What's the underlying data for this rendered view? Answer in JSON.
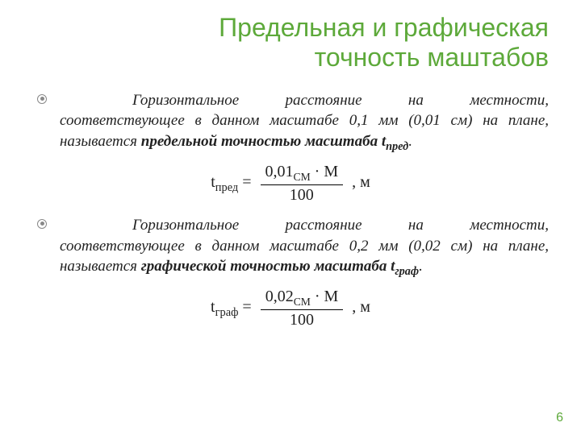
{
  "colors": {
    "title": "#5da93a",
    "body_text": "#222222",
    "page_number": "#5da93a",
    "bullet_ring": "#888888",
    "rule": "#000000",
    "background": "#ffffff"
  },
  "typography": {
    "title_fontsize_pt": 24,
    "body_fontsize_pt": 14,
    "formula_fontsize_pt": 15,
    "title_font": "sans-serif",
    "body_font": "Georgia / Times italic"
  },
  "title_line1": "Предельная и графическая",
  "title_line2": "точность маштабов",
  "para1": {
    "lead": "Горизонтальное расстояние на местности, соответствующее в данном масштабе 0,1 мм (0,01 см) на плане, называется ",
    "term": "предельной точностью масштаба t",
    "term_sub": "пред",
    "tail": "."
  },
  "formula1": {
    "lhs_t": "t",
    "lhs_sub": "пред",
    "eq": " = ",
    "num_val": "0,01",
    "num_unit_sub": "СМ",
    "num_dot": " · М",
    "den": "100",
    "trail": " , м"
  },
  "para2": {
    "lead": "Горизонтальное расстояние на местности, соответствующее в данном масштабе 0,2 мм (0,02 см) на плане, называется ",
    "term": "графической точностью масштаба  t",
    "term_sub": "граф",
    "tail": "."
  },
  "formula2": {
    "lhs_t": "t",
    "lhs_sub": "граф",
    "eq": " = ",
    "num_val": "0,02",
    "num_unit_sub": "СМ",
    "num_dot": " · М",
    "den": "100",
    "trail": " , м"
  },
  "page_number": "6"
}
